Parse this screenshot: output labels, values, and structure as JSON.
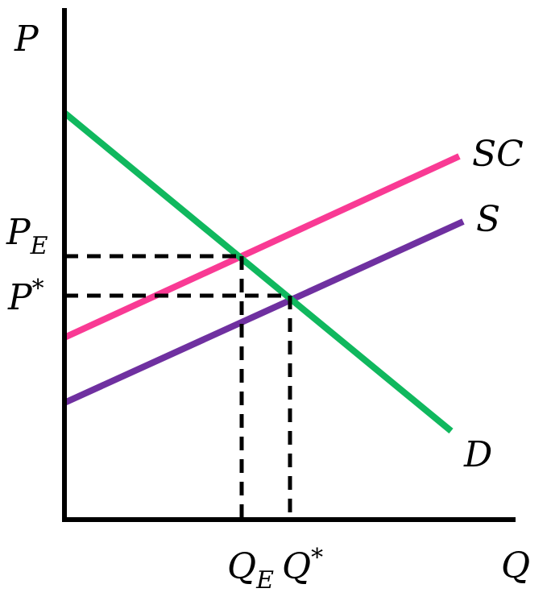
{
  "chart_data": {
    "type": "line",
    "title": "",
    "xlabel": "Q",
    "ylabel": "P",
    "xlim": [
      0,
      560
    ],
    "ylim": [
      0,
      640
    ],
    "grid": false,
    "legend": "none",
    "series": [
      {
        "name": "SC",
        "color": "#f93a94",
        "x": [
          0,
          490
        ],
        "y": [
          226,
          451
        ]
      },
      {
        "name": "S",
        "color": "#6f30a0",
        "x": [
          0,
          495
        ],
        "y": [
          145,
          370
        ]
      },
      {
        "name": "D",
        "color": "#10b85e",
        "x": [
          0,
          480
        ],
        "y": [
          505,
          110
        ]
      }
    ],
    "reference_points": [
      {
        "x_label": "Q",
        "x_sub": "E",
        "y_label": "P",
        "y_sub": "E",
        "x": 220,
        "y": 327
      },
      {
        "x_label": "Q",
        "x_sub": "*",
        "y_label": "P",
        "y_sub": "*",
        "x": 280,
        "y": 278
      }
    ],
    "colors": {
      "axis": "#000000",
      "guides": "#000000"
    }
  }
}
